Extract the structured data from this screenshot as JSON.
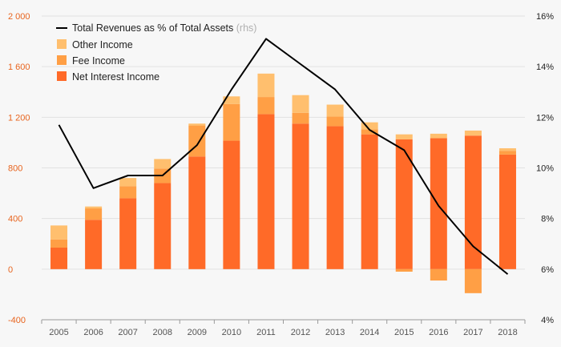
{
  "chart_data": {
    "type": "bar",
    "categories": [
      "2005",
      "2006",
      "2007",
      "2008",
      "2009",
      "2010",
      "2011",
      "2012",
      "2013",
      "2014",
      "2015",
      "2016",
      "2017",
      "2018"
    ],
    "series": [
      {
        "name": "Net Interest Income",
        "color": "#ff6a28",
        "values": [
          170,
          390,
          560,
          680,
          890,
          1015,
          1225,
          1150,
          1130,
          1065,
          1025,
          1035,
          1055,
          905
        ]
      },
      {
        "name": "Fee Income",
        "color": "#ff9f45",
        "values": [
          65,
          90,
          95,
          115,
          245,
          290,
          135,
          85,
          75,
          40,
          -20,
          -90,
          -190,
          30
        ]
      },
      {
        "name": "Other Income",
        "color": "#ffbf6e",
        "values": [
          110,
          15,
          65,
          75,
          15,
          60,
          185,
          140,
          95,
          55,
          40,
          35,
          40,
          20
        ]
      }
    ],
    "line": {
      "name": "Total Revenues as % of Total Assets",
      "name_suffix": "(rhs)",
      "color": "#000000",
      "values": [
        11.7,
        9.2,
        9.7,
        9.7,
        10.9,
        13.1,
        15.1,
        14.1,
        13.1,
        11.5,
        10.7,
        8.5,
        6.9,
        5.8
      ]
    },
    "ylim_left": [
      -400,
      2000
    ],
    "ticks_left": [
      {
        "value": -400,
        "label": "-400"
      },
      {
        "value": 0,
        "label": "0"
      },
      {
        "value": 400,
        "label": "400"
      },
      {
        "value": 800,
        "label": "800"
      },
      {
        "value": 1200,
        "label": "1 200"
      },
      {
        "value": 1600,
        "label": "1 600"
      },
      {
        "value": 2000,
        "label": "2 000"
      }
    ],
    "ylim_right": [
      4,
      16
    ],
    "ticks_right": [
      {
        "value": 4,
        "label": "4%"
      },
      {
        "value": 6,
        "label": "6%"
      },
      {
        "value": 8,
        "label": "8%"
      },
      {
        "value": 10,
        "label": "10%"
      },
      {
        "value": 12,
        "label": "12%"
      },
      {
        "value": 14,
        "label": "14%"
      },
      {
        "value": 16,
        "label": "16%"
      }
    ],
    "legend_position": "top-left",
    "grid": true
  }
}
